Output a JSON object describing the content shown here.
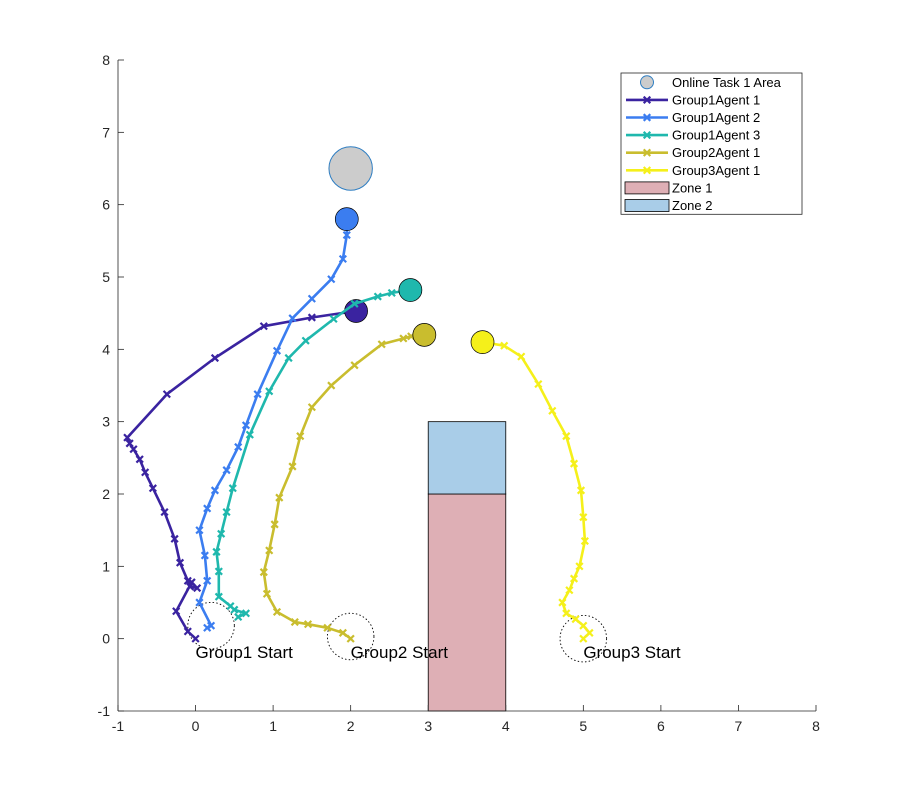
{
  "chart_data": {
    "type": "line",
    "title": "",
    "xlabel": "",
    "ylabel": "",
    "xlim": [
      -1,
      8
    ],
    "ylim": [
      -1,
      8
    ],
    "xticks": [
      -1,
      0,
      1,
      2,
      3,
      4,
      5,
      6,
      7,
      8
    ],
    "yticks": [
      -1,
      0,
      1,
      2,
      3,
      4,
      5,
      6,
      7,
      8
    ],
    "grid": false,
    "legend_position": "top-right",
    "legend": [
      {
        "label": "Online Task 1 Area",
        "kind": "circle",
        "color": "#cccccc",
        "edge": "#2f7ec2"
      },
      {
        "label": "Group1Agent 1",
        "kind": "line",
        "color": "#3a23a0"
      },
      {
        "label": "Group1Agent 2",
        "kind": "line",
        "color": "#3b7df0"
      },
      {
        "label": "Group1Agent 3",
        "kind": "line",
        "color": "#1fb8ad"
      },
      {
        "label": "Group2Agent 1",
        "kind": "line",
        "color": "#c9bd2e"
      },
      {
        "label": "Group3Agent 1",
        "kind": "line",
        "color": "#f5f01a"
      },
      {
        "label": "Zone 1",
        "kind": "rect",
        "color": "#deafb5"
      },
      {
        "label": "Zone 2",
        "kind": "rect",
        "color": "#a9cde8"
      }
    ],
    "zones": [
      {
        "name": "Zone 1",
        "x": [
          3,
          4
        ],
        "y": [
          -1,
          2
        ],
        "color": "#deafb5"
      },
      {
        "name": "Zone 2",
        "x": [
          3,
          4
        ],
        "y": [
          2,
          3
        ],
        "color": "#a9cde8"
      }
    ],
    "task_area": {
      "name": "Online Task 1 Area",
      "center": [
        2,
        6.5
      ],
      "radius": 0.28,
      "color": "#cccccc",
      "edge": "#2f7ec2"
    },
    "series": [
      {
        "name": "Group1Agent 1",
        "color": "#3a23a0",
        "points": [
          [
            0,
            0
          ],
          [
            -0.1,
            0.1
          ],
          [
            -0.25,
            0.38
          ],
          [
            -0.05,
            0.78
          ],
          [
            0.02,
            0.7
          ],
          [
            -0.07,
            0.72
          ],
          [
            -0.1,
            0.8
          ],
          [
            -0.2,
            1.05
          ],
          [
            -0.27,
            1.38
          ],
          [
            -0.4,
            1.75
          ],
          [
            -0.55,
            2.08
          ],
          [
            -0.65,
            2.3
          ],
          [
            -0.72,
            2.48
          ],
          [
            -0.8,
            2.62
          ],
          [
            -0.85,
            2.7
          ],
          [
            -0.88,
            2.78
          ],
          [
            -0.37,
            3.38
          ],
          [
            0.25,
            3.88
          ],
          [
            0.88,
            4.32
          ],
          [
            1.5,
            4.44
          ],
          [
            2.07,
            4.53
          ]
        ],
        "end": [
          2.07,
          4.53
        ]
      },
      {
        "name": "Group1Agent 2",
        "color": "#3b7df0",
        "points": [
          [
            0.15,
            0.15
          ],
          [
            0.2,
            0.18
          ],
          [
            0.05,
            0.5
          ],
          [
            0.15,
            0.8
          ],
          [
            0.12,
            1.15
          ],
          [
            0.05,
            1.5
          ],
          [
            0.15,
            1.8
          ],
          [
            0.25,
            2.05
          ],
          [
            0.4,
            2.33
          ],
          [
            0.55,
            2.65
          ],
          [
            0.65,
            2.95
          ],
          [
            0.8,
            3.38
          ],
          [
            1.05,
            3.98
          ],
          [
            1.25,
            4.43
          ],
          [
            1.5,
            4.7
          ],
          [
            1.75,
            4.97
          ],
          [
            1.9,
            5.25
          ],
          [
            1.95,
            5.58
          ],
          [
            1.95,
            5.8
          ]
        ],
        "end": [
          1.95,
          5.8
        ]
      },
      {
        "name": "Group1Agent 3",
        "color": "#1fb8ad",
        "points": [
          [
            0.55,
            0.3
          ],
          [
            0.65,
            0.35
          ],
          [
            0.5,
            0.4
          ],
          [
            0.45,
            0.45
          ],
          [
            0.3,
            0.58
          ],
          [
            0.3,
            0.93
          ],
          [
            0.27,
            1.2
          ],
          [
            0.33,
            1.45
          ],
          [
            0.4,
            1.75
          ],
          [
            0.48,
            2.08
          ],
          [
            0.7,
            2.82
          ],
          [
            0.95,
            3.42
          ],
          [
            1.2,
            3.88
          ],
          [
            1.42,
            4.12
          ],
          [
            1.78,
            4.42
          ],
          [
            2.05,
            4.63
          ],
          [
            2.35,
            4.73
          ],
          [
            2.53,
            4.78
          ],
          [
            2.77,
            4.82
          ]
        ],
        "end": [
          2.77,
          4.82
        ]
      },
      {
        "name": "Group2Agent 1",
        "color": "#c9bd2e",
        "points": [
          [
            2.0,
            0.0
          ],
          [
            1.9,
            0.08
          ],
          [
            1.7,
            0.15
          ],
          [
            1.45,
            0.2
          ],
          [
            1.28,
            0.23
          ],
          [
            1.05,
            0.37
          ],
          [
            0.92,
            0.62
          ],
          [
            0.88,
            0.92
          ],
          [
            0.95,
            1.22
          ],
          [
            1.02,
            1.58
          ],
          [
            1.08,
            1.95
          ],
          [
            1.25,
            2.38
          ],
          [
            1.35,
            2.8
          ],
          [
            1.5,
            3.2
          ],
          [
            1.75,
            3.5
          ],
          [
            2.05,
            3.78
          ],
          [
            2.4,
            4.07
          ],
          [
            2.68,
            4.15
          ],
          [
            2.78,
            4.18
          ],
          [
            2.95,
            4.2
          ]
        ],
        "end": [
          2.95,
          4.2
        ]
      },
      {
        "name": "Group3Agent 1",
        "color": "#f5f01a",
        "points": [
          [
            5.0,
            0.0
          ],
          [
            5.08,
            0.08
          ],
          [
            5.0,
            0.18
          ],
          [
            4.9,
            0.27
          ],
          [
            4.78,
            0.35
          ],
          [
            4.73,
            0.5
          ],
          [
            4.82,
            0.67
          ],
          [
            4.88,
            0.83
          ],
          [
            4.95,
            1.0
          ],
          [
            5.02,
            1.35
          ],
          [
            5.0,
            1.68
          ],
          [
            4.97,
            2.05
          ],
          [
            4.88,
            2.42
          ],
          [
            4.78,
            2.8
          ],
          [
            4.6,
            3.15
          ],
          [
            4.42,
            3.52
          ],
          [
            4.2,
            3.9
          ],
          [
            3.98,
            4.05
          ],
          [
            3.7,
            4.1
          ]
        ],
        "end": [
          3.7,
          4.1
        ]
      }
    ],
    "start_rings": [
      {
        "center": [
          0.2,
          0.18
        ],
        "radius": 0.3
      },
      {
        "center": [
          2.0,
          0.03
        ],
        "radius": 0.3
      },
      {
        "center": [
          5.0,
          0.0
        ],
        "radius": 0.3
      }
    ],
    "annotations": [
      {
        "text": "Group1 Start",
        "x": 0.0,
        "y": -0.2
      },
      {
        "text": "Group2 Start",
        "x": 2.0,
        "y": -0.2
      },
      {
        "text": "Group3 Start",
        "x": 5.0,
        "y": -0.2
      }
    ]
  }
}
